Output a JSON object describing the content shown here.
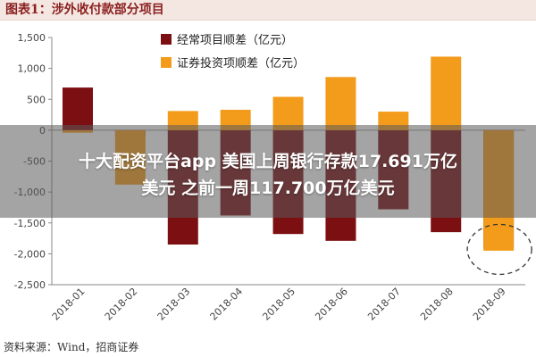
{
  "header": {
    "title": "图表1：涉外收付款部分项目"
  },
  "overlay": {
    "line1": "十大配资平台app 美国上周银行存款17.691万亿",
    "line2": "美元 之前一周117.700万亿美元"
  },
  "footer": {
    "source": "资料来源：Wind，招商证券"
  },
  "colors": {
    "current_account": "#7b0f12",
    "securities": "#f39b1a",
    "header_bg": "#f4e6e1",
    "title_color": "#8a1f1f"
  },
  "chart_data": {
    "type": "bar",
    "categories": [
      "2018-01",
      "2018-02",
      "2018-03",
      "2018-04",
      "2018-05",
      "2018-06",
      "2018-07",
      "2018-08",
      "2018-09"
    ],
    "series": [
      {
        "name": "经常项目顺差（亿元）",
        "values": [
          690,
          -120,
          -1850,
          -1380,
          -1680,
          -1790,
          -1280,
          -1650,
          -1900
        ]
      },
      {
        "name": "证券投资项顺差（亿元）",
        "values": [
          -40,
          -880,
          310,
          330,
          540,
          860,
          300,
          1190,
          -1950
        ]
      }
    ],
    "ylim": [
      -2500,
      1500
    ],
    "yticks": [
      1500,
      1000,
      500,
      0,
      -500,
      -1000,
      -1500,
      -2000,
      -2500
    ],
    "ytick_labels": [
      "1,500",
      "1,000",
      "500",
      "0",
      "-500",
      "-1,000",
      "-1,500",
      "-2,000",
      "-2,500"
    ],
    "legend_position": "top-center",
    "grid": false,
    "annotation": "dashed circle around 2018-09 bars"
  }
}
